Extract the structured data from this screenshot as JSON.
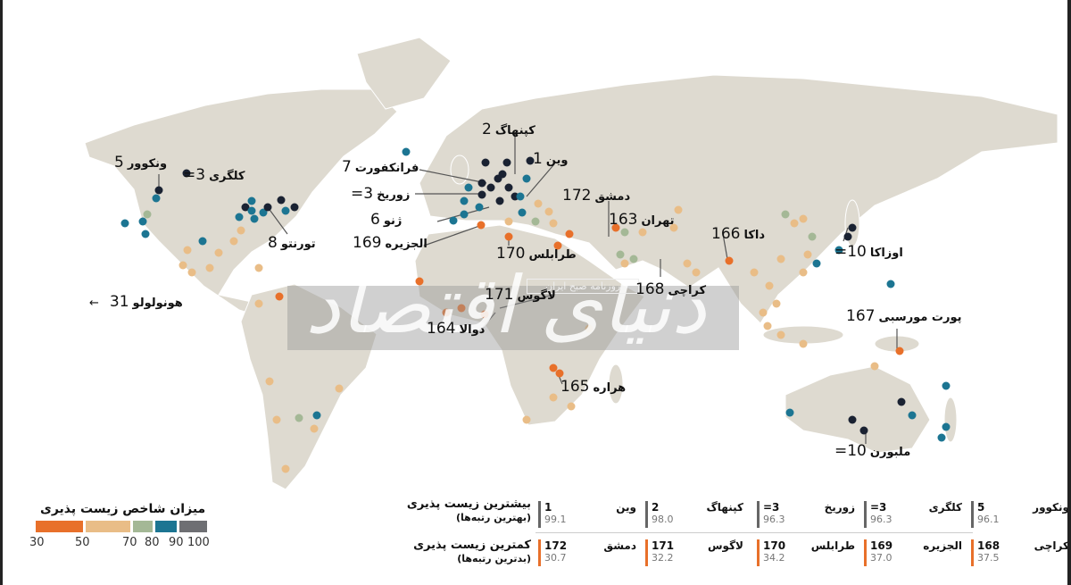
{
  "colors": {
    "band_30_50": "#e8702a",
    "band_50_70": "#e9bd87",
    "band_70_80": "#a4b896",
    "band_80_90": "#1c7592",
    "band_90_100": "#6e6f73",
    "top_dot": "#1a2232",
    "land": "#dedad0",
    "water": "#ffffff"
  },
  "map_labels": [
    {
      "id": "vancouver",
      "rank": "5",
      "name": "ونکوور"
    },
    {
      "id": "calgary",
      "rank": "=3",
      "name": "کلگری"
    },
    {
      "id": "toronto",
      "rank": "8",
      "name": "تورنتو"
    },
    {
      "id": "honolulu",
      "rank": "31",
      "name": "هونولولو"
    },
    {
      "id": "copenhagen",
      "rank": "2",
      "name": "کپنهاگ"
    },
    {
      "id": "vienna",
      "rank": "1",
      "name": "وین"
    },
    {
      "id": "frankfurt",
      "rank": "7",
      "name": "فرانکفورت"
    },
    {
      "id": "zurich",
      "rank": "=3",
      "name": "زوریخ"
    },
    {
      "id": "geneva",
      "rank": "6",
      "name": "ژنو"
    },
    {
      "id": "algiers",
      "rank": "169",
      "name": "الجزیره"
    },
    {
      "id": "damascus",
      "rank": "172",
      "name": "دمشق"
    },
    {
      "id": "tehran",
      "rank": "163",
      "name": "تهران"
    },
    {
      "id": "tripoli",
      "rank": "170",
      "name": "طرابلس"
    },
    {
      "id": "dhaka",
      "rank": "166",
      "name": "داکا"
    },
    {
      "id": "osaka",
      "rank": "=10",
      "name": "اوزاکا"
    },
    {
      "id": "karachi",
      "rank": "168",
      "name": "کراچی"
    },
    {
      "id": "lagos",
      "rank": "171",
      "name": "لاگوس"
    },
    {
      "id": "douala",
      "rank": "164",
      "name": "دوالا"
    },
    {
      "id": "port_moresby",
      "rank": "167",
      "name": "پورت مورسبی"
    },
    {
      "id": "harare",
      "rank": "165",
      "name": "هراره"
    },
    {
      "id": "melbourne",
      "rank": "=10",
      "name": "ملبورن"
    }
  ],
  "watermark": {
    "logo": "دنیای اقتصاد",
    "tagline": "روزنامه صبح ایران"
  },
  "legend": {
    "title": "میزان شاخص زیست پذیری",
    "ticks": [
      "30",
      "50",
      "70",
      "80",
      "90",
      "100"
    ]
  },
  "table": {
    "best": {
      "title": "بیشترین زیست پذیری",
      "subtitle": "(بهترین رتبه‌ها)",
      "rows": [
        {
          "name": "وین",
          "rank": "1",
          "score": "99.1"
        },
        {
          "name": "کپنهاگ",
          "rank": "2",
          "score": "98.0"
        },
        {
          "name": "زوریخ",
          "rank": "=3",
          "score": "96.3"
        },
        {
          "name": "کلگری",
          "rank": "=3",
          "score": "96.3"
        },
        {
          "name": "ونکوور",
          "rank": "5",
          "score": "96.1"
        }
      ]
    },
    "worst": {
      "title": "کمترین زیست پذیری",
      "subtitle": "(بدترین رتبه‌ها)",
      "rows": [
        {
          "name": "دمشق",
          "rank": "172",
          "score": "30.7"
        },
        {
          "name": "لاگوس",
          "rank": "171",
          "score": "32.2"
        },
        {
          "name": "طرابلس",
          "rank": "170",
          "score": "34.2"
        },
        {
          "name": "الجزیره",
          "rank": "169",
          "score": "37.0"
        },
        {
          "name": "کراچی",
          "rank": "168",
          "score": "37.5"
        }
      ]
    }
  }
}
